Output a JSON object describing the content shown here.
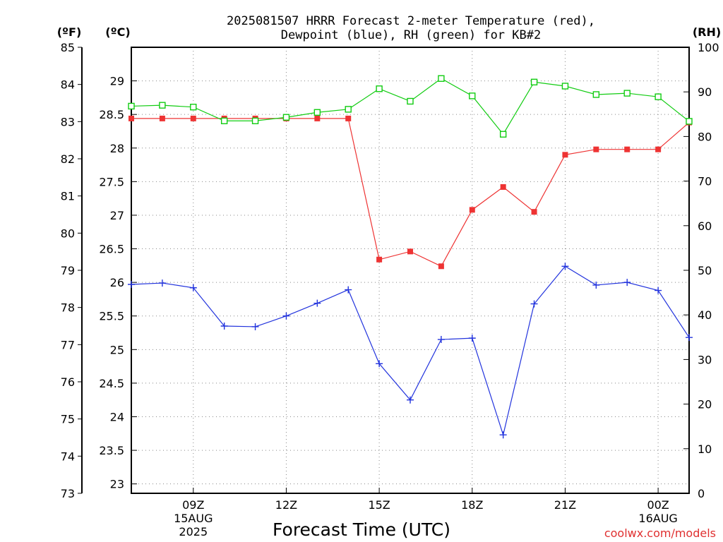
{
  "chart_data": {
    "type": "line",
    "title_line1": "2025081507 HRRR Forecast 2-meter Temperature (red),",
    "title_line2": "Dewpoint (blue), RH (green) for KB#2",
    "unit_f": "(ºF)",
    "unit_c": "(ºC)",
    "unit_rh": "(RH)",
    "xlabel": "Forecast Time (UTC)",
    "credit": "coolwx.com/models",
    "x_hours": [
      7,
      8,
      9,
      10,
      11,
      12,
      13,
      14,
      15,
      16,
      17,
      18,
      19,
      20,
      21,
      22,
      23,
      24,
      25
    ],
    "x_range_hours": [
      7,
      25
    ],
    "x_ticks": [
      {
        "hour": 9,
        "lines": [
          "09Z",
          "15AUG",
          "2025"
        ]
      },
      {
        "hour": 12,
        "lines": [
          "12Z"
        ]
      },
      {
        "hour": 15,
        "lines": [
          "15Z"
        ]
      },
      {
        "hour": 18,
        "lines": [
          "18Z"
        ]
      },
      {
        "hour": 21,
        "lines": [
          "21Z"
        ]
      },
      {
        "hour": 24,
        "lines": [
          "00Z",
          "16AUG"
        ]
      }
    ],
    "y_celsius_range": [
      22.86,
      29.5
    ],
    "y_fahrenheit_range": [
      73,
      85
    ],
    "y_rh_range": [
      0,
      100
    ],
    "y_celsius_ticks": [
      "23",
      "23.5",
      "24",
      "24.5",
      "25",
      "25.5",
      "26",
      "26.5",
      "27",
      "27.5",
      "28",
      "28.5",
      "29"
    ],
    "y_fahrenheit_ticks": [
      "73",
      "74",
      "75",
      "76",
      "77",
      "78",
      "79",
      "80",
      "81",
      "82",
      "83",
      "84",
      "85"
    ],
    "y_rh_ticks": [
      "0",
      "10",
      "20",
      "30",
      "40",
      "50",
      "60",
      "70",
      "80",
      "90",
      "100"
    ],
    "grid": true,
    "series": [
      {
        "axis": "celsius",
        "color": "#ee3333",
        "marker": "filled-square",
        "values": [
          28.44,
          28.44,
          28.44,
          28.44,
          28.44,
          28.44,
          28.44,
          28.44,
          26.34,
          26.46,
          26.24,
          27.08,
          27.42,
          27.05,
          27.9,
          27.98,
          27.98,
          27.98,
          28.38
        ]
      },
      {
        "axis": "celsius",
        "color": "#2233dd",
        "marker": "plus",
        "values": [
          25.97,
          25.99,
          25.92,
          25.35,
          25.34,
          25.5,
          25.69,
          25.89,
          24.79,
          24.25,
          25.15,
          25.17,
          23.73,
          25.68,
          26.24,
          25.96,
          26.0,
          25.88,
          25.18
        ]
      },
      {
        "axis": "rh",
        "color": "#11cc11",
        "marker": "open-square",
        "values": [
          86.8,
          87.0,
          86.6,
          83.5,
          83.5,
          84.3,
          85.4,
          86.1,
          90.7,
          87.9,
          93.0,
          89.1,
          80.5,
          92.2,
          91.3,
          89.4,
          89.7,
          88.9,
          83.4
        ]
      }
    ]
  }
}
